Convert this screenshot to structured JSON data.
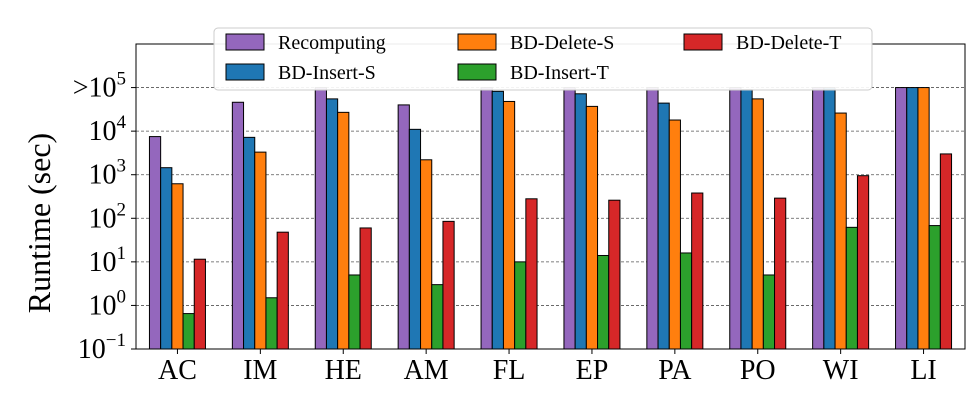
{
  "chart_data": {
    "type": "bar",
    "title": "",
    "xlabel": "",
    "ylabel": "Runtime (sec)",
    "yscale": "log",
    "ylim": [
      0.1,
      1000000
    ],
    "grid": "horizontal dashed",
    "legend_position": "top",
    "categories": [
      "AC",
      "IM",
      "HE",
      "AM",
      "FL",
      "EP",
      "PA",
      "PO",
      "WI",
      "LI"
    ],
    "y_ticks": [
      {
        "value": 0.1,
        "base": "10",
        "exp": "−1",
        "prefix": ""
      },
      {
        "value": 1,
        "base": "10",
        "exp": "0",
        "prefix": ""
      },
      {
        "value": 10,
        "base": "10",
        "exp": "1",
        "prefix": ""
      },
      {
        "value": 100,
        "base": "10",
        "exp": "2",
        "prefix": ""
      },
      {
        "value": 1000,
        "base": "10",
        "exp": "3",
        "prefix": ""
      },
      {
        "value": 10000,
        "base": "10",
        "exp": "4",
        "prefix": ""
      },
      {
        "value": 100000,
        "base": "10",
        "exp": "5",
        "prefix": ">"
      }
    ],
    "series": [
      {
        "name": "Recomputing",
        "color": "#9467bd",
        "values": [
          7500,
          46000,
          100000,
          40000,
          100000,
          100000,
          100000,
          100000,
          100000,
          100000
        ]
      },
      {
        "name": "BD-Insert-S",
        "color": "#1f77b4",
        "values": [
          1450,
          7200,
          55000,
          11000,
          82000,
          72000,
          44000,
          90000,
          100000,
          100000
        ]
      },
      {
        "name": "BD-Delete-S",
        "color": "#ff7f0e",
        "values": [
          620,
          3300,
          27000,
          2200,
          48000,
          37000,
          18000,
          55000,
          26000,
          100000
        ]
      },
      {
        "name": "BD-Insert-T",
        "color": "#2ca02c",
        "values": [
          0.65,
          1.5,
          5,
          3,
          10,
          14,
          16,
          5,
          62,
          68
        ]
      },
      {
        "name": "BD-Delete-T",
        "color": "#d62728",
        "values": [
          11.5,
          48,
          60,
          85,
          280,
          260,
          380,
          290,
          950,
          3000
        ]
      }
    ]
  }
}
